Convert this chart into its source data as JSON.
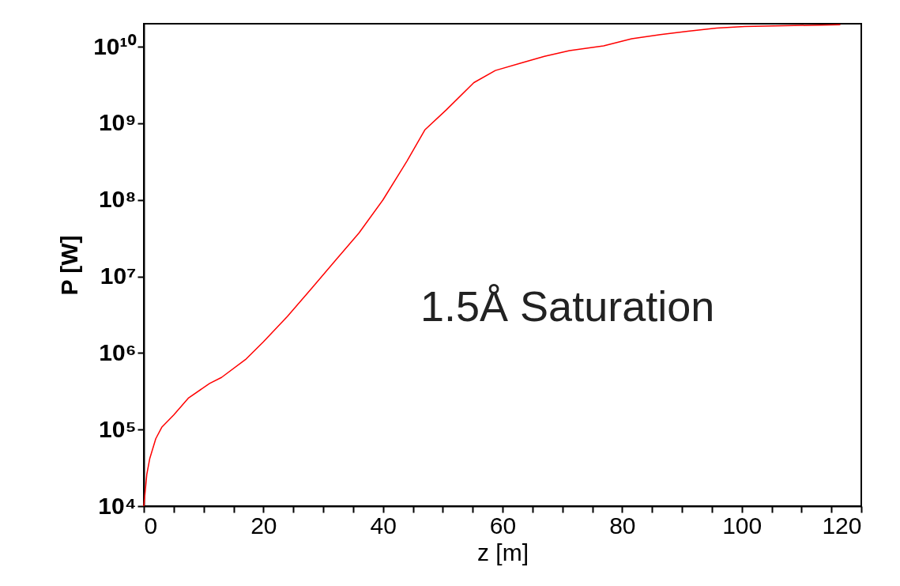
{
  "chart_data": {
    "type": "line",
    "xlabel": "z [m]",
    "ylabel": "P [W]",
    "annotations": [
      "1.5Å Saturation"
    ],
    "log": "y",
    "grid": false,
    "marker": "none",
    "line_style": "solid",
    "xlim": [
      0,
      120
    ],
    "ylim": [
      10000,
      20000000000
    ],
    "xticks": [
      0,
      {
        "value": 5,
        "label": null
      },
      {
        "value": 10,
        "label": null
      },
      {
        "value": 15,
        "label": null
      },
      20,
      {
        "value": 25,
        "label": null
      },
      {
        "value": 30,
        "label": null
      },
      {
        "value": 35,
        "label": null
      },
      40,
      {
        "value": 45,
        "label": null
      },
      {
        "value": 50,
        "label": null
      },
      {
        "value": 55,
        "label": null
      },
      60,
      {
        "value": 65,
        "label": null
      },
      {
        "value": 70,
        "label": null
      },
      {
        "value": 75,
        "label": null
      },
      80,
      {
        "value": 85,
        "label": null
      },
      {
        "value": 90,
        "label": null
      },
      {
        "value": 95,
        "label": null
      },
      100,
      {
        "value": 105,
        "label": null
      },
      {
        "value": 110,
        "label": null
      },
      {
        "value": 115,
        "label": null
      },
      120
    ],
    "yticks": [
      {
        "value": 10000,
        "label": "10⁴"
      },
      {
        "value": 100000,
        "label": "10⁵"
      },
      {
        "value": 1000000,
        "label": "10⁶"
      },
      {
        "value": 10000000,
        "label": "10⁷"
      },
      {
        "value": 100000000,
        "label": "10⁸"
      },
      {
        "value": 1000000000,
        "label": "10⁹"
      },
      {
        "value": 10000000000,
        "label": "10¹⁰"
      }
    ],
    "series": [
      {
        "color": "#ff0000",
        "x": [
          0,
          0.5,
          1,
          2,
          3,
          5,
          7.5,
          11,
          13,
          17,
          20,
          24,
          28,
          32,
          36,
          40,
          44,
          47,
          50.6,
          55.2,
          58.8,
          63.3,
          67,
          71.2,
          76.9,
          81.6,
          86.4,
          91,
          95.8,
          100.5,
          116.5
        ],
        "values": [
          10000,
          26000,
          42000,
          76000,
          107000,
          155000,
          260000,
          400000,
          480000,
          820000,
          1400000,
          3000000,
          6900000,
          16000000,
          37000000,
          100000000,
          320000000,
          820000000,
          1500000000,
          3400000000,
          4900000000,
          6200000000,
          7500000000,
          8900000000,
          10300000000,
          12700000000,
          14400000000,
          16000000000,
          17500000000,
          18400000000,
          19400000000
        ]
      }
    ]
  }
}
